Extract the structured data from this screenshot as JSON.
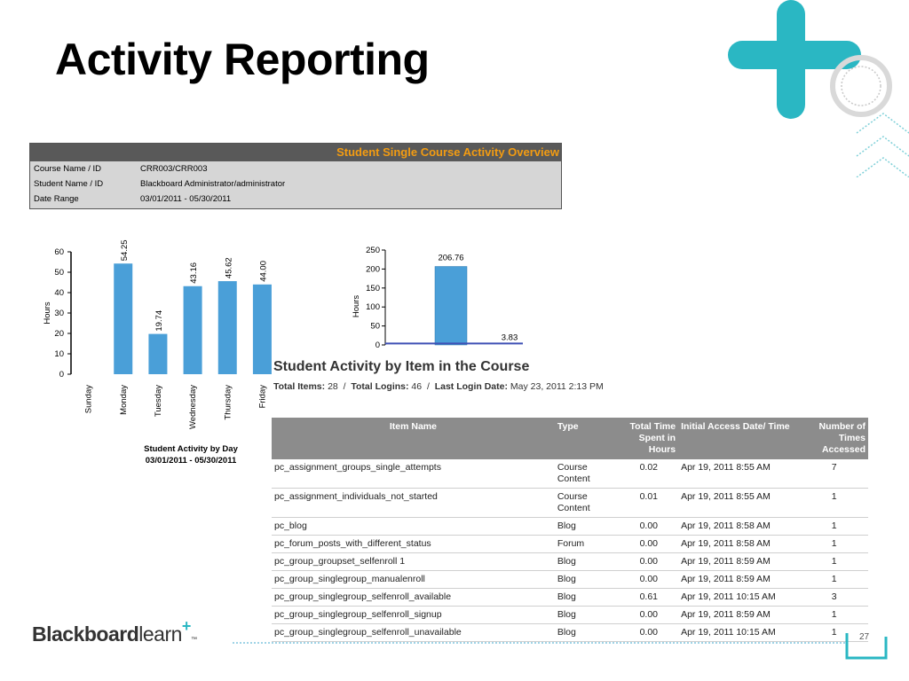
{
  "slide": {
    "title": "Activity Reporting",
    "page_number": "27"
  },
  "overview": {
    "header": "Student Single Course Activity Overview",
    "rows": [
      {
        "key": "Course Name / ID",
        "value": "CRR003/CRR003"
      },
      {
        "key": "Student Name / ID",
        "value": "Blackboard Administrator/administrator"
      },
      {
        "key": "Date Range",
        "value": "03/01/2011 - 05/30/2011"
      }
    ]
  },
  "chart_data": [
    {
      "type": "bar",
      "title": "Student Activity by Day",
      "subtitle": "03/01/2011 - 05/30/2011",
      "ylabel": "Hours",
      "categories": [
        "Sunday",
        "Monday",
        "Tuesday",
        "Wednesday",
        "Thursday",
        "Friday"
      ],
      "values": [
        null,
        54.25,
        19.74,
        43.16,
        45.62,
        44.0
      ],
      "labels": [
        "",
        "54.25",
        "19.74",
        "43.16",
        "45.62",
        "44.00"
      ],
      "ylim": [
        0,
        60
      ],
      "yticks": [
        0,
        10,
        20,
        30,
        40,
        50,
        60
      ],
      "color": "#4a9fd8"
    },
    {
      "type": "bar",
      "ylabel": "Hours",
      "values": [
        206.76
      ],
      "labels": [
        "206.76"
      ],
      "line_value": 3.83,
      "line_label": "3.83",
      "ylim": [
        0,
        250
      ],
      "yticks": [
        0,
        50,
        100,
        150,
        200,
        250
      ],
      "color": "#4a9fd8",
      "line_color": "#3f51b5"
    }
  ],
  "items": {
    "title": "Student Activity by Item in the Course",
    "summary": {
      "total_items_label": "Total Items:",
      "total_items": "28",
      "total_logins_label": "Total Logins:",
      "total_logins": "46",
      "last_login_label": "Last Login Date:",
      "last_login": "May 23, 2011 2:13 PM"
    },
    "columns": [
      "Item Name",
      "Type",
      "Total Time Spent in Hours",
      "Initial Access Date/ Time",
      "Number of Times Accessed"
    ],
    "rows": [
      [
        "pc_assignment_groups_single_attempts",
        "Course Content",
        "0.02",
        "Apr 19, 2011 8:55 AM",
        "7"
      ],
      [
        "pc_assignment_individuals_not_started",
        "Course Content",
        "0.01",
        "Apr 19, 2011 8:55 AM",
        "1"
      ],
      [
        "pc_blog",
        "Blog",
        "0.00",
        "Apr 19, 2011 8:58 AM",
        "1"
      ],
      [
        "pc_forum_posts_with_different_status",
        "Forum",
        "0.00",
        "Apr 19, 2011 8:58 AM",
        "1"
      ],
      [
        "pc_group_groupset_selfenroll 1",
        "Blog",
        "0.00",
        "Apr 19, 2011 8:59 AM",
        "1"
      ],
      [
        "pc_group_singlegroup_manualenroll",
        "Blog",
        "0.00",
        "Apr 19, 2011 8:59 AM",
        "1"
      ],
      [
        "pc_group_singlegroup_selfenroll_available",
        "Blog",
        "0.61",
        "Apr 19, 2011 10:15 AM",
        "3"
      ],
      [
        "pc_group_singlegroup_selfenroll_signup",
        "Blog",
        "0.00",
        "Apr 19, 2011 8:59 AM",
        "1"
      ],
      [
        "pc_group_singlegroup_selfenroll_unavailable",
        "Blog",
        "0.00",
        "Apr 19, 2011 10:15 AM",
        "1"
      ]
    ]
  },
  "footer": {
    "logo_bold": "Blackboard",
    "logo_light": "learn",
    "logo_plus": "+",
    "trademark": "™"
  },
  "colors": {
    "accent_teal": "#2ab7c3",
    "header_orange": "#f39c12",
    "bar_blue": "#4a9fd8"
  }
}
